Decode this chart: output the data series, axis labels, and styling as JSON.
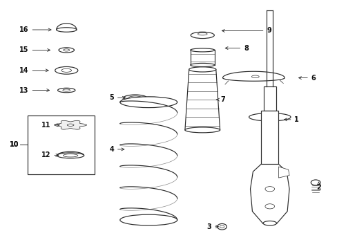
{
  "bg_color": "#ffffff",
  "line_color": "#2a2a2a",
  "figsize": [
    4.89,
    3.6
  ],
  "dpi": 100,
  "labels": {
    "1": [
      0.88,
      0.52,
      0.835,
      0.52
    ],
    "2": [
      0.945,
      0.245,
      0.945,
      0.27
    ],
    "3": [
      0.62,
      0.088,
      0.655,
      0.088
    ],
    "4": [
      0.33,
      0.4,
      0.375,
      0.4
    ],
    "5": [
      0.33,
      0.608,
      0.378,
      0.608
    ],
    "6": [
      0.93,
      0.688,
      0.878,
      0.688
    ],
    "7": [
      0.66,
      0.6,
      0.64,
      0.6
    ],
    "8": [
      0.73,
      0.808,
      0.66,
      0.808
    ],
    "9": [
      0.798,
      0.878,
      0.65,
      0.878
    ],
    "11": [
      0.135,
      0.498,
      0.183,
      0.498
    ],
    "12": [
      0.135,
      0.378,
      0.18,
      0.375
    ],
    "13": [
      0.07,
      0.638,
      0.153,
      0.638
    ],
    "14": [
      0.07,
      0.718,
      0.15,
      0.718
    ],
    "15": [
      0.07,
      0.8,
      0.155,
      0.8
    ],
    "16": [
      0.07,
      0.882,
      0.158,
      0.882
    ]
  }
}
